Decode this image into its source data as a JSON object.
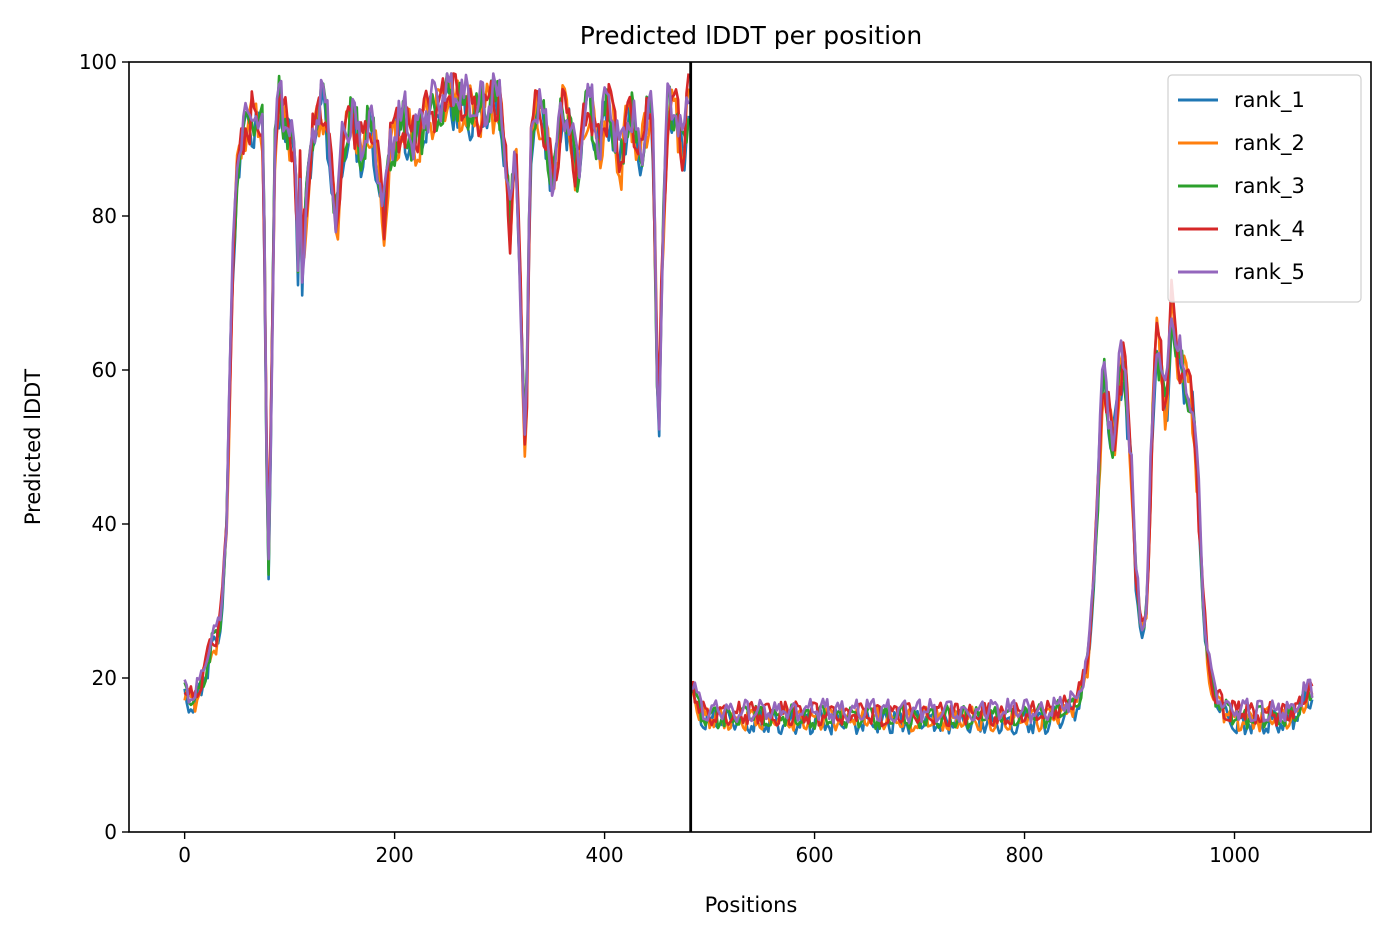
{
  "chart_data": {
    "type": "line",
    "title": "Predicted lDDT per position",
    "xlabel": "Positions",
    "ylabel": "Predicted lDDT",
    "xlim": [
      -53,
      1130
    ],
    "ylim": [
      0,
      100
    ],
    "xticks": [
      0,
      200,
      400,
      600,
      800,
      1000
    ],
    "yticks": [
      0,
      20,
      40,
      60,
      80,
      100
    ],
    "grid": false,
    "legend_position": "top-right",
    "chain_break_x": 482,
    "series": [
      {
        "name": "rank_1",
        "color": "#1f77b4"
      },
      {
        "name": "rank_2",
        "color": "#ff7f0e"
      },
      {
        "name": "rank_3",
        "color": "#2ca02c"
      },
      {
        "name": "rank_4",
        "color": "#d62728"
      },
      {
        "name": "rank_5",
        "color": "#9467bd"
      }
    ],
    "profile": {
      "x": [
        0,
        5,
        10,
        15,
        20,
        25,
        30,
        35,
        40,
        45,
        50,
        55,
        60,
        65,
        70,
        75,
        78,
        80,
        83,
        86,
        90,
        95,
        100,
        105,
        108,
        110,
        112,
        115,
        120,
        125,
        130,
        135,
        140,
        145,
        150,
        155,
        160,
        165,
        170,
        175,
        180,
        185,
        190,
        195,
        200,
        210,
        220,
        230,
        240,
        250,
        260,
        270,
        280,
        290,
        300,
        305,
        310,
        315,
        320,
        322,
        325,
        327,
        330,
        335,
        340,
        345,
        350,
        355,
        360,
        365,
        370,
        375,
        380,
        385,
        390,
        395,
        400,
        405,
        410,
        415,
        420,
        425,
        430,
        435,
        440,
        445,
        447,
        450,
        452,
        455,
        460,
        465,
        470,
        475,
        480,
        483,
        485,
        490,
        500,
        520,
        540,
        560,
        580,
        600,
        620,
        640,
        660,
        680,
        700,
        720,
        740,
        760,
        780,
        800,
        820,
        840,
        850,
        855,
        860,
        865,
        870,
        875,
        880,
        885,
        890,
        895,
        900,
        903,
        905,
        910,
        913,
        917,
        920,
        925,
        930,
        935,
        940,
        945,
        950,
        955,
        960,
        965,
        970,
        975,
        980,
        990,
        1000,
        1010,
        1020,
        1030,
        1040,
        1050,
        1060,
        1070,
        1075
      ],
      "y": [
        19,
        17,
        17,
        19,
        21,
        24,
        25,
        28,
        40,
        70,
        86,
        91,
        92,
        93,
        92,
        91,
        50,
        35,
        60,
        88,
        95,
        93,
        91,
        88,
        75,
        85,
        72,
        80,
        88,
        92,
        95,
        93,
        86,
        78,
        88,
        92,
        93,
        90,
        88,
        92,
        90,
        85,
        80,
        88,
        90,
        92,
        89,
        93,
        94,
        96,
        95,
        94,
        93,
        95,
        94,
        88,
        78,
        90,
        70,
        60,
        45,
        70,
        90,
        95,
        93,
        90,
        85,
        88,
        95,
        92,
        88,
        85,
        93,
        95,
        92,
        88,
        93,
        94,
        90,
        86,
        92,
        94,
        89,
        88,
        92,
        94,
        85,
        60,
        55,
        75,
        93,
        95,
        92,
        88,
        95,
        20,
        18,
        16,
        15,
        15,
        15,
        15,
        15,
        15,
        15,
        15,
        15,
        15,
        15,
        15,
        15,
        15,
        15,
        15,
        15,
        16,
        17,
        19,
        22,
        30,
        45,
        60,
        55,
        50,
        58,
        62,
        50,
        44,
        35,
        28,
        26,
        30,
        45,
        65,
        60,
        55,
        68,
        62,
        60,
        58,
        55,
        45,
        30,
        22,
        18,
        16,
        15,
        15,
        15,
        15,
        15,
        15,
        16,
        18,
        18
      ]
    }
  }
}
